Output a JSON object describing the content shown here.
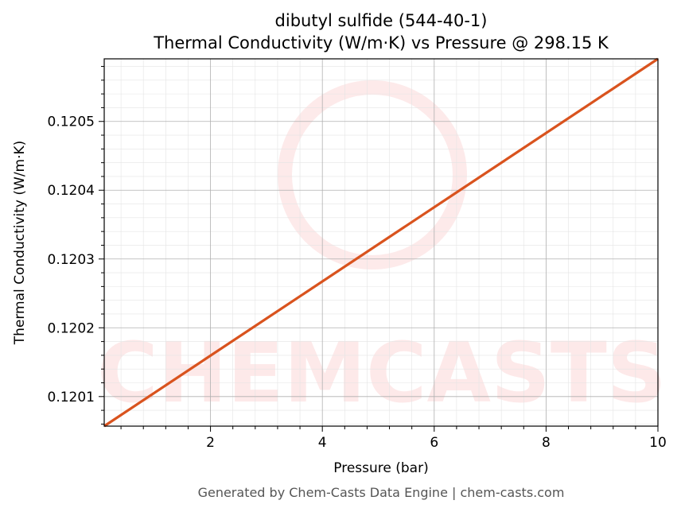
{
  "chart_data": {
    "type": "line",
    "title": "dibutyl sulfide (544-40-1)",
    "subtitle": "Thermal Conductivity (W/m·K) vs Pressure @ 298.15 K",
    "x_label": "Pressure (bar)",
    "y_label": "Thermal Conductivity (W/m·K)",
    "watermark": "CHEMCASTS",
    "footer": "Generated by Chem-Casts Data Engine | chem-casts.com",
    "x": [
      0.1,
      10
    ],
    "series": [
      {
        "name": "Thermal Conductivity",
        "color": "#d9531e",
        "values": [
          0.120057,
          0.120591
        ]
      }
    ],
    "xlim": [
      0.1,
      10
    ],
    "xticks": [
      2,
      4,
      6,
      8,
      10
    ],
    "ylim": [
      0.120057,
      0.120591
    ],
    "yticks": [
      0.1201,
      0.1202,
      0.1203,
      0.1204,
      0.1205
    ],
    "grid": true
  }
}
